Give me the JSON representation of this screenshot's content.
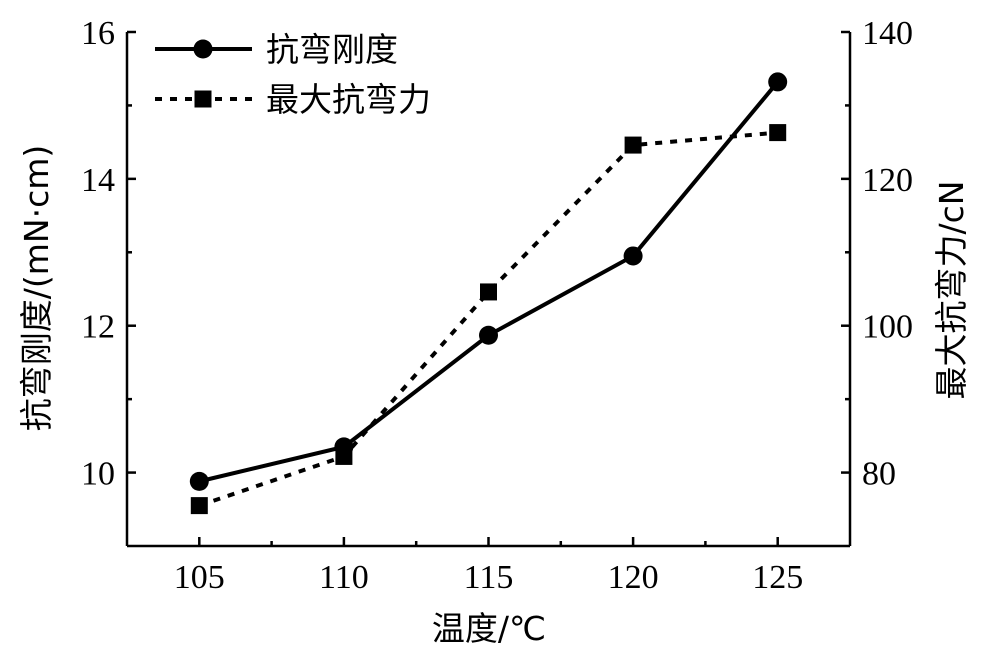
{
  "chart_data": {
    "type": "line",
    "x": [
      105,
      110,
      115,
      120,
      125
    ],
    "xlabel": "温度/℃",
    "xlim": [
      102.5,
      127.5
    ],
    "xticks": [
      105,
      110,
      115,
      120,
      125
    ],
    "ylabel_left": "抗弯刚度/(mN·cm)",
    "ylim_left": [
      9,
      16
    ],
    "yticks_left": [
      10,
      12,
      14,
      16
    ],
    "ylabel_right": "最大抗弯力/cN",
    "ylim_right": [
      70,
      140
    ],
    "yticks_right": [
      80,
      100,
      120,
      140
    ],
    "series": [
      {
        "name": "抗弯刚度",
        "axis": "left",
        "values": [
          9.88,
          10.35,
          11.87,
          12.95,
          15.32
        ],
        "line_style": "solid",
        "marker": "circle",
        "color": "#000000"
      },
      {
        "name": "最大抗弯力",
        "axis": "right",
        "values": [
          75.5,
          82.2,
          104.6,
          124.6,
          126.3
        ],
        "line_style": "dotted",
        "marker": "square",
        "color": "#000000"
      }
    ],
    "legend_position": "top-left",
    "grid": false
  }
}
